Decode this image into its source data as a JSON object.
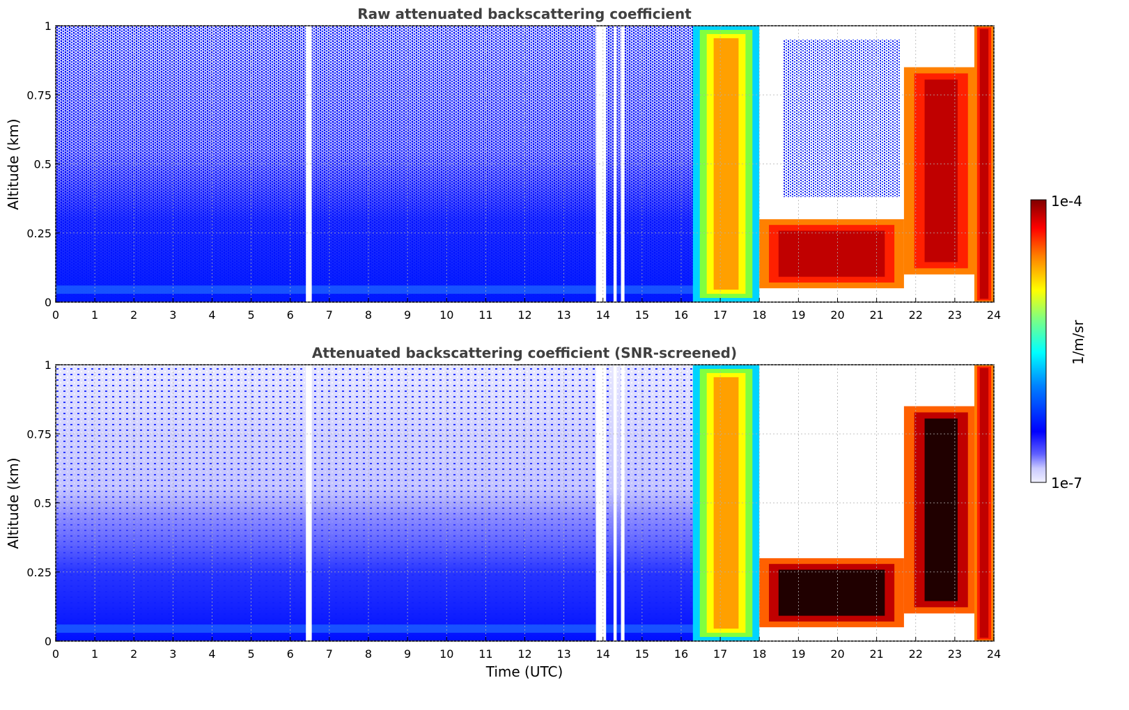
{
  "chart_data": [
    {
      "type": "heatmap",
      "title": "Raw attenuated backscattering coefficient",
      "xlabel": "",
      "ylabel": "Altitude (km)",
      "xlim": [
        0,
        24
      ],
      "ylim": [
        0,
        1
      ],
      "x_ticks": [
        "0",
        "1",
        "2",
        "3",
        "4",
        "5",
        "6",
        "7",
        "8",
        "9",
        "10",
        "11",
        "12",
        "13",
        "14",
        "15",
        "16",
        "17",
        "18",
        "19",
        "20",
        "21",
        "22",
        "23",
        "24"
      ],
      "y_ticks": [
        "0",
        "0.25",
        "0.5",
        "0.75",
        "1"
      ],
      "grid": true,
      "color_scale": "log",
      "data_gaps_hours": [
        [
          6.4,
          6.55
        ],
        [
          13.82,
          14.08
        ],
        [
          14.27,
          14.35
        ],
        [
          14.46,
          14.55
        ]
      ],
      "features": [
        {
          "hours": [
            0,
            16
          ],
          "description_level": "background"
        },
        {
          "hours": [
            16.3,
            18.0
          ],
          "altitude_km": [
            0,
            1
          ],
          "level": "moderate-high"
        },
        {
          "hours": [
            18.0,
            21.7
          ],
          "altitude_km": [
            0.05,
            0.3
          ],
          "level": "high"
        },
        {
          "hours": [
            21.7,
            23.6
          ],
          "altitude_km": [
            0.1,
            0.85
          ],
          "level": "high"
        },
        {
          "hours": [
            23.5,
            24
          ],
          "altitude_km": [
            0,
            1
          ],
          "level": "high"
        }
      ]
    },
    {
      "type": "heatmap",
      "title": "Attenuated backscattering coefficient (SNR-screened)",
      "xlabel": "Time (UTC)",
      "ylabel": "Altitude (km)",
      "xlim": [
        0,
        24
      ],
      "ylim": [
        0,
        1
      ],
      "x_ticks": [
        "0",
        "1",
        "2",
        "3",
        "4",
        "5",
        "6",
        "7",
        "8",
        "9",
        "10",
        "11",
        "12",
        "13",
        "14",
        "15",
        "16",
        "17",
        "18",
        "19",
        "20",
        "21",
        "22",
        "23",
        "24"
      ],
      "y_ticks": [
        "0",
        "0.25",
        "0.5",
        "0.75",
        "1"
      ],
      "grid": true,
      "color_scale": "log",
      "data_gaps_hours": [
        [
          6.4,
          6.55
        ],
        [
          13.82,
          14.08
        ],
        [
          14.27,
          14.35
        ],
        [
          14.46,
          14.55
        ]
      ],
      "features": [
        {
          "hours": [
            0,
            16
          ],
          "description_level": "screened background"
        },
        {
          "hours": [
            16.3,
            18.0
          ],
          "altitude_km": [
            0,
            1
          ],
          "level": "moderate-high"
        },
        {
          "hours": [
            18.0,
            21.7
          ],
          "altitude_km": [
            0.05,
            0.3
          ],
          "level": "very high"
        },
        {
          "hours": [
            21.7,
            23.6
          ],
          "altitude_km": [
            0.1,
            0.85
          ],
          "level": "very high"
        },
        {
          "hours": [
            23.5,
            24
          ],
          "altitude_km": [
            0,
            1
          ],
          "level": "high"
        }
      ]
    }
  ],
  "colorbar": {
    "max_label": "1e-4",
    "min_label": "1e-7",
    "unit_label": "1/m/sr",
    "colormap": "jet"
  }
}
